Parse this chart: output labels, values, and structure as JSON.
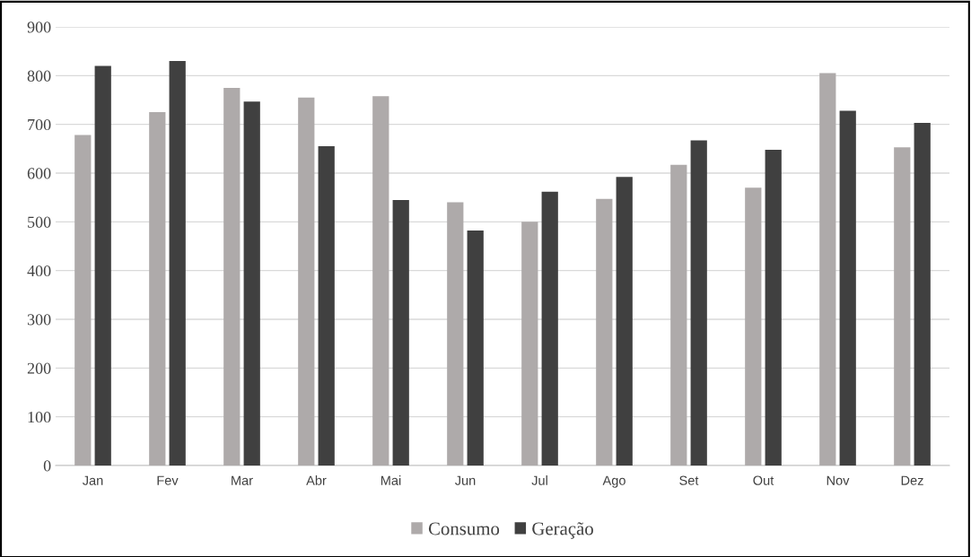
{
  "chart_data": {
    "type": "bar",
    "categories": [
      "Jan",
      "Fev",
      "Mar",
      "Abr",
      "Mai",
      "Jun",
      "Jul",
      "Ago",
      "Set",
      "Out",
      "Nov",
      "Dez"
    ],
    "series": [
      {
        "name": "Consumo",
        "color": "#aeaaaa",
        "values": [
          678,
          725,
          775,
          755,
          758,
          540,
          500,
          547,
          617,
          570,
          805,
          653
        ]
      },
      {
        "name": "Geração",
        "color": "#404040",
        "values": [
          820,
          830,
          747,
          655,
          545,
          482,
          562,
          592,
          667,
          648,
          728,
          703
        ]
      }
    ],
    "ylim": [
      0,
      900
    ],
    "yticks": [
      0,
      100,
      200,
      300,
      400,
      500,
      600,
      700,
      800,
      900
    ],
    "grid": "y",
    "legend": "bottom"
  }
}
